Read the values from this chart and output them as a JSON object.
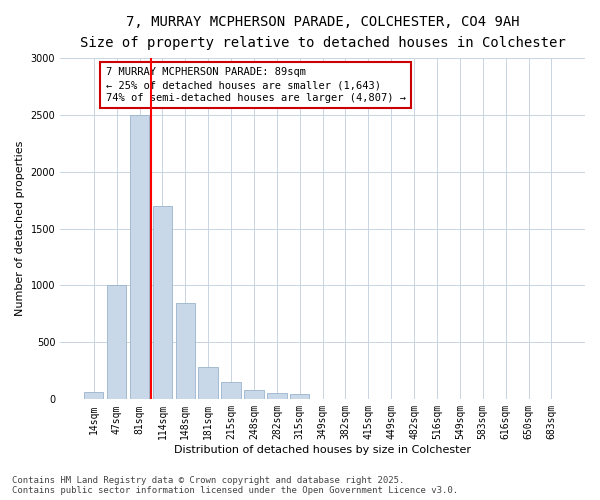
{
  "title_line1": "7, MURRAY MCPHERSON PARADE, COLCHESTER, CO4 9AH",
  "title_line2": "Size of property relative to detached houses in Colchester",
  "xlabel": "Distribution of detached houses by size in Colchester",
  "ylabel": "Number of detached properties",
  "categories": [
    "14sqm",
    "47sqm",
    "81sqm",
    "114sqm",
    "148sqm",
    "181sqm",
    "215sqm",
    "248sqm",
    "282sqm",
    "315sqm",
    "349sqm",
    "382sqm",
    "415sqm",
    "449sqm",
    "482sqm",
    "516sqm",
    "549sqm",
    "583sqm",
    "616sqm",
    "650sqm",
    "683sqm"
  ],
  "values": [
    62,
    1000,
    2500,
    1700,
    850,
    280,
    155,
    80,
    60,
    50,
    0,
    0,
    0,
    0,
    0,
    0,
    0,
    0,
    0,
    0,
    0
  ],
  "bar_color": "#c8d8e8",
  "bar_edge_color": "#9ab4cc",
  "red_line_x": 2.5,
  "annotation_text": "7 MURRAY MCPHERSON PARADE: 89sqm\n← 25% of detached houses are smaller (1,643)\n74% of semi-detached houses are larger (4,807) →",
  "annotation_box_color": "#ffffff",
  "annotation_box_edge_color": "#cc0000",
  "ylim": [
    0,
    3000
  ],
  "yticks": [
    0,
    500,
    1000,
    1500,
    2000,
    2500,
    3000
  ],
  "footer_line1": "Contains HM Land Registry data © Crown copyright and database right 2025.",
  "footer_line2": "Contains public sector information licensed under the Open Government Licence v3.0.",
  "bg_color": "#ffffff",
  "grid_color": "#c8d4e0",
  "title_fontsize": 10,
  "subtitle_fontsize": 9,
  "axis_label_fontsize": 8,
  "tick_fontsize": 7,
  "annotation_fontsize": 7.5,
  "footer_fontsize": 6.5
}
